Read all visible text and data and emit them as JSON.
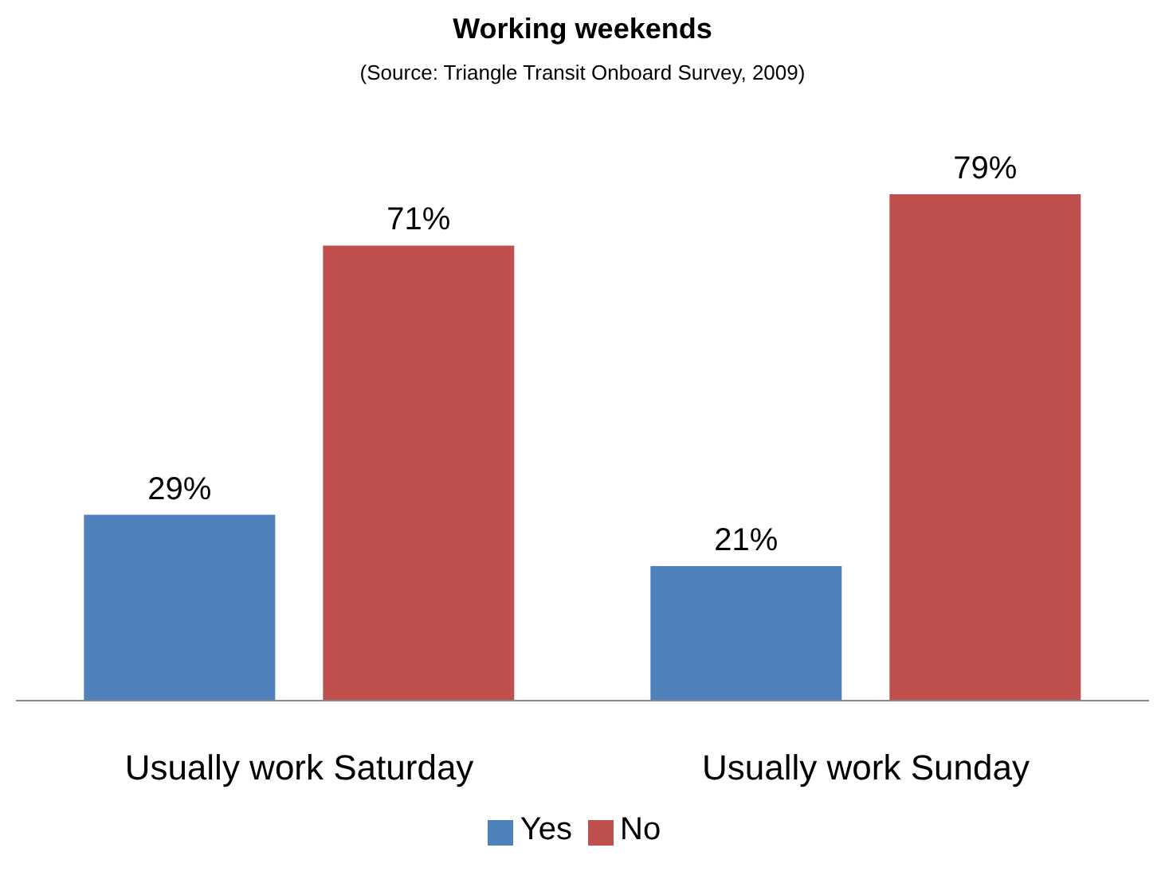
{
  "chart_data": {
    "type": "bar",
    "title": "Working weekends",
    "subtitle": "(Source: Triangle Transit Onboard Survey, 2009)",
    "categories": [
      "Usually work Saturday",
      "Usually work Sunday"
    ],
    "series": [
      {
        "name": "Yes",
        "color": "#4f81bd",
        "values": [
          29,
          21
        ],
        "value_labels": [
          "29%",
          "21%"
        ]
      },
      {
        "name": "No",
        "color": "#c0504d",
        "values": [
          71,
          79
        ],
        "value_labels": [
          "71%",
          "79%"
        ]
      }
    ],
    "legend": "bottom",
    "grid": false
  }
}
